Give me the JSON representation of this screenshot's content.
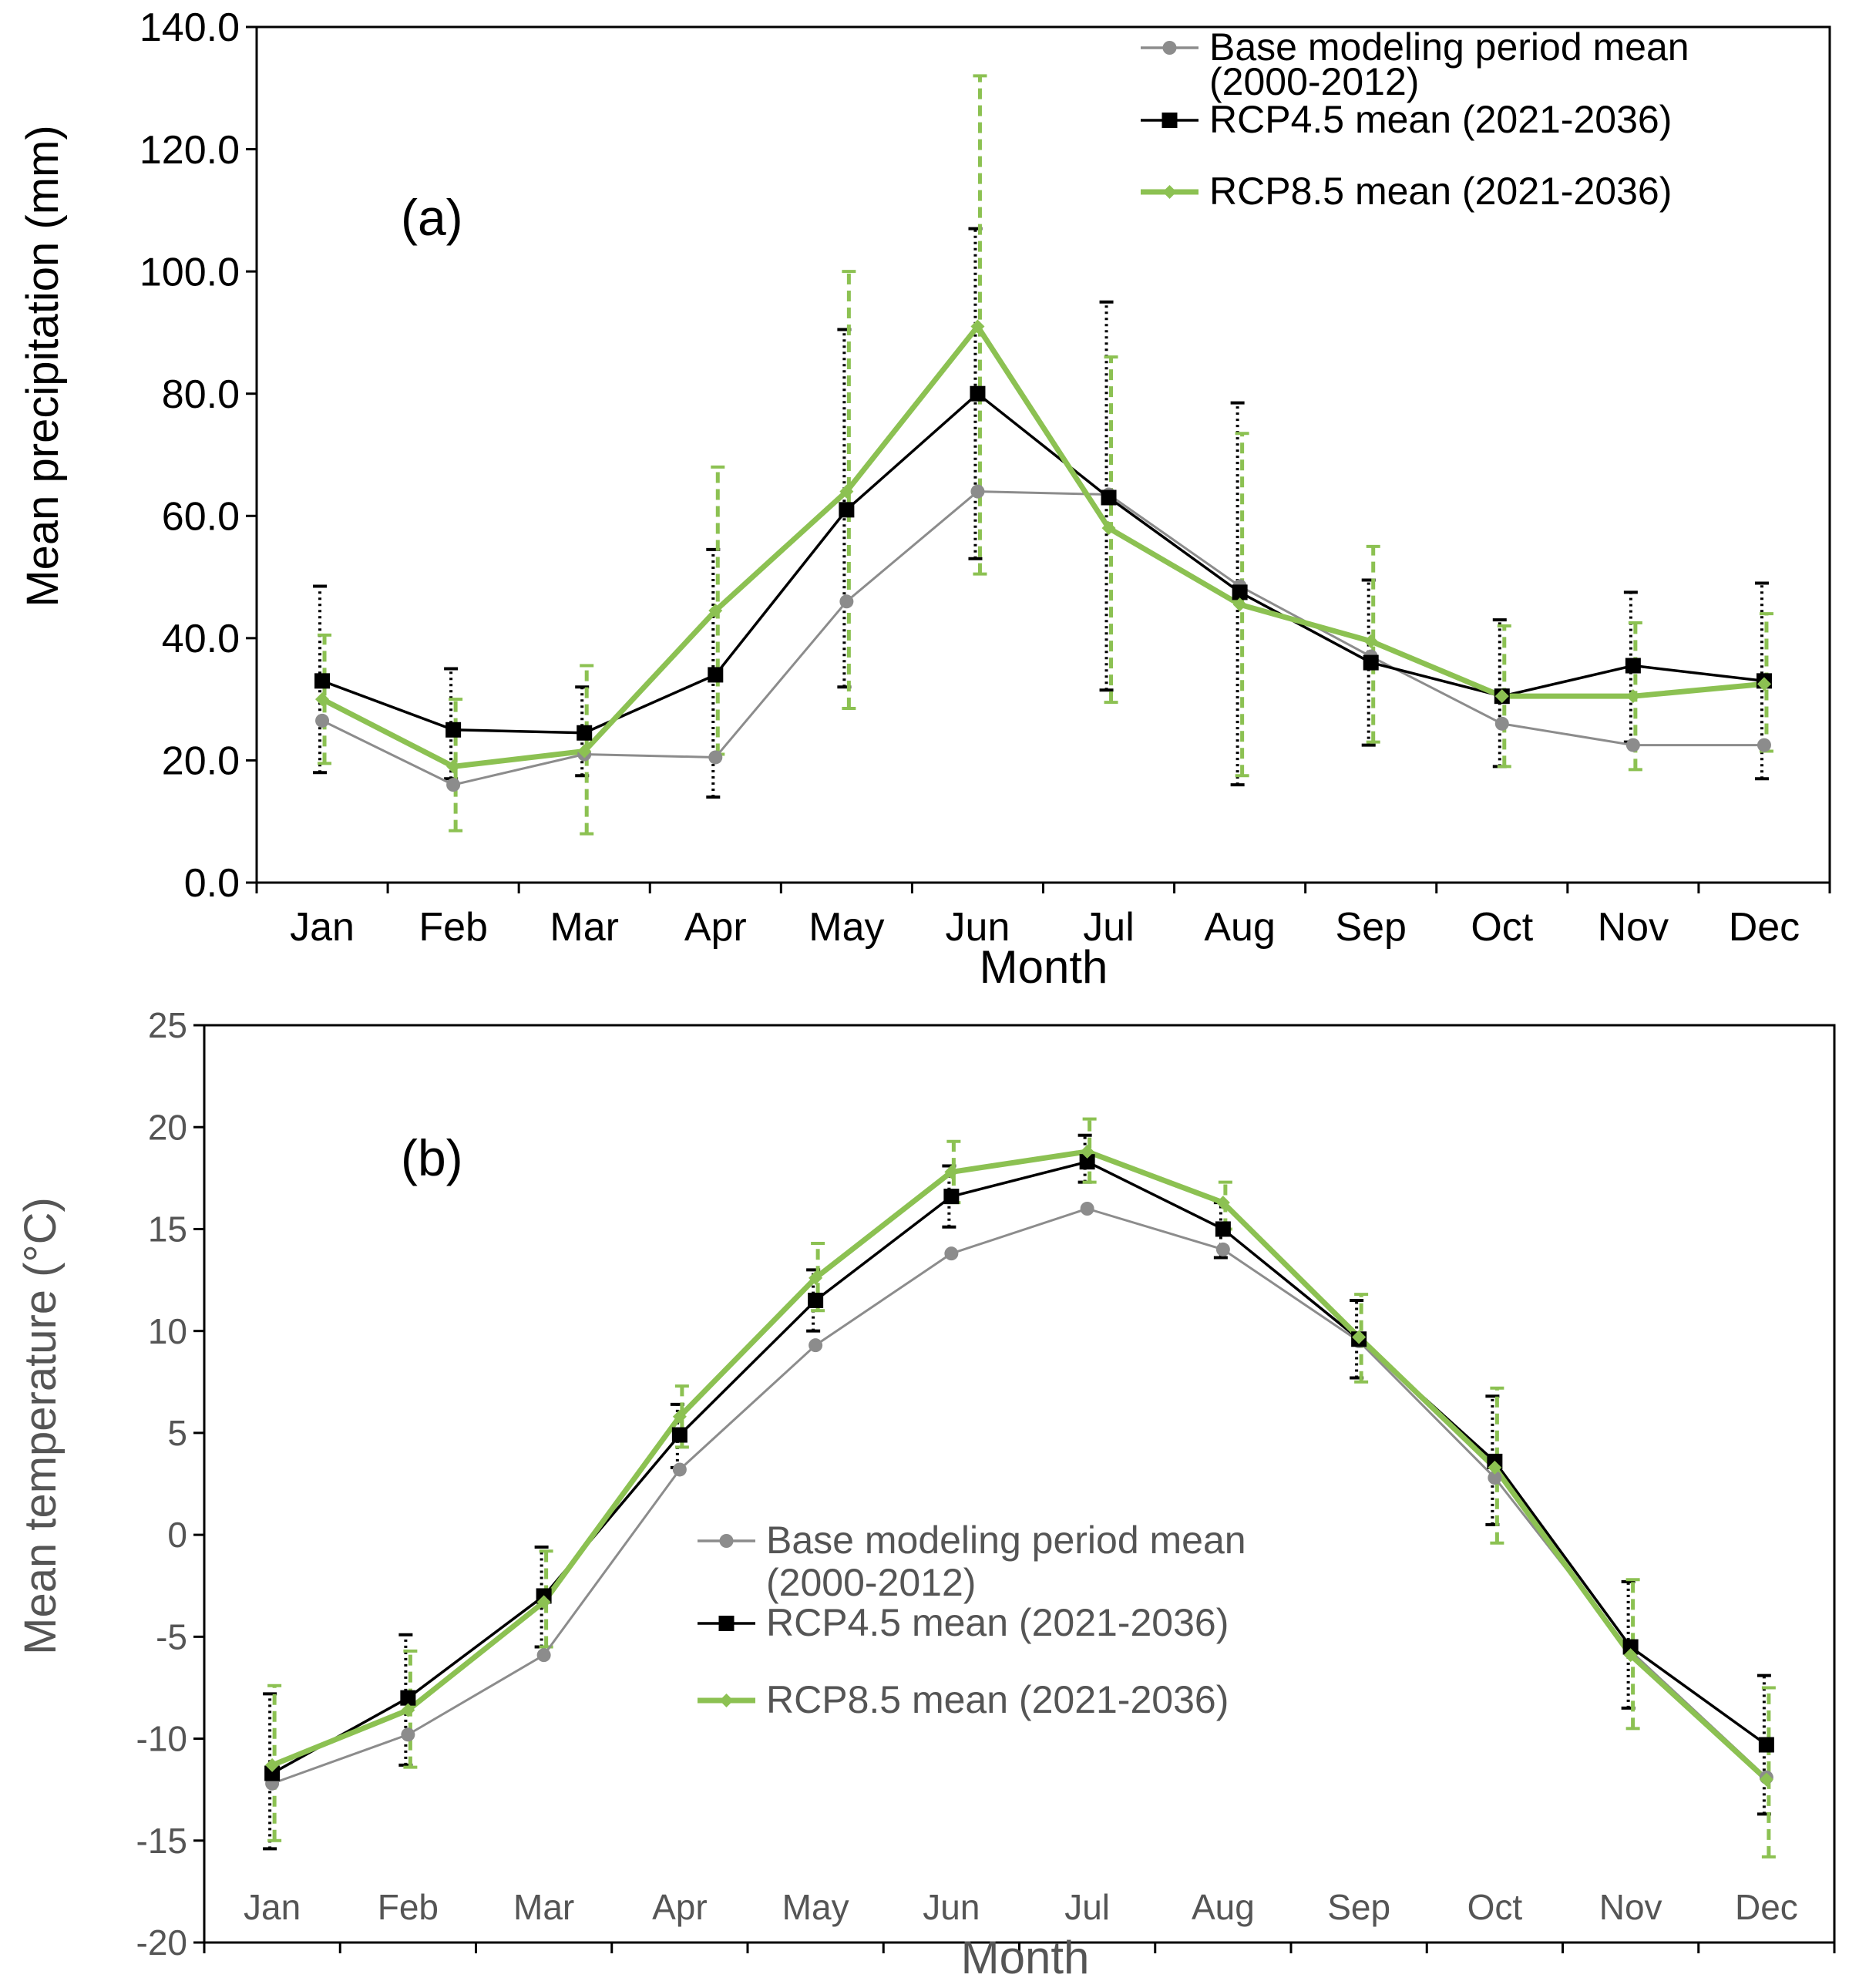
{
  "chart_data": [
    {
      "id": "a",
      "type": "line",
      "panel_label": "(a)",
      "xlabel": "Month",
      "ylabel": "Mean precipitation (mm)",
      "categories": [
        "Jan",
        "Feb",
        "Mar",
        "Apr",
        "May",
        "Jun",
        "Jul",
        "Aug",
        "Sep",
        "Oct",
        "Nov",
        "Dec"
      ],
      "ylim": [
        0,
        140
      ],
      "yticks": [
        "0.0",
        "20.0",
        "40.0",
        "60.0",
        "80.0",
        "100.0",
        "120.0",
        "140.0"
      ],
      "grid": false,
      "legend_position": "top-right",
      "series": [
        {
          "name": "Base modeling period mean (2000-2012)",
          "legend_lines": [
            "Base modeling period mean",
            "(2000-2012)"
          ],
          "color": "#8c8c8c",
          "marker": "circle",
          "values": [
            26.5,
            16.0,
            21.0,
            20.5,
            46.0,
            64.0,
            63.5,
            48.5,
            37.0,
            26.0,
            22.5,
            22.5
          ]
        },
        {
          "name": "RCP4.5 mean (2021-2036)",
          "legend_lines": [
            "RCP4.5 mean (2021-2036)"
          ],
          "color": "#000000",
          "marker": "square",
          "values": [
            33.0,
            25.0,
            24.5,
            34.0,
            61.0,
            80.0,
            63.0,
            47.5,
            36.0,
            30.5,
            35.5,
            33.0
          ],
          "error_low": [
            18.0,
            17.0,
            17.5,
            14.0,
            32.0,
            53.0,
            31.5,
            16.0,
            22.5,
            19.0,
            23.0,
            17.0
          ],
          "error_high": [
            48.5,
            35.0,
            32.0,
            54.5,
            90.5,
            107.0,
            95.0,
            78.5,
            49.5,
            43.0,
            47.5,
            49.0
          ]
        },
        {
          "name": "RCP8.5 mean (2021-2036)",
          "legend_lines": [
            "RCP8.5 mean (2021-2036)"
          ],
          "color": "#8cc152",
          "marker": "diamond",
          "values": [
            30.0,
            19.0,
            21.5,
            44.5,
            64.0,
            91.0,
            58.0,
            45.5,
            39.5,
            30.5,
            30.5,
            32.5
          ],
          "error_low": [
            19.5,
            8.5,
            8.0,
            21.0,
            28.5,
            50.5,
            29.5,
            17.5,
            23.0,
            19.0,
            18.5,
            21.5
          ],
          "error_high": [
            40.5,
            30.0,
            35.5,
            68.0,
            100.0,
            132.0,
            86.0,
            73.5,
            55.0,
            42.0,
            42.5,
            44.0
          ]
        }
      ]
    },
    {
      "id": "b",
      "type": "line",
      "panel_label": "(b)",
      "xlabel": "Month",
      "ylabel": "Mean temperature (°C)",
      "categories": [
        "Jan",
        "Feb",
        "Mar",
        "Apr",
        "May",
        "Jun",
        "Jul",
        "Aug",
        "Sep",
        "Oct",
        "Nov",
        "Dec"
      ],
      "ylim": [
        -20,
        25
      ],
      "yticks": [
        "-20",
        "-15",
        "-10",
        "-5",
        "0",
        "5",
        "10",
        "15",
        "20",
        "25"
      ],
      "grid": false,
      "legend_position": "center",
      "series": [
        {
          "name": "Base modeling period mean (2000-2012)",
          "legend_lines": [
            "Base modeling period mean",
            "(2000-2012)"
          ],
          "color": "#8c8c8c",
          "marker": "circle",
          "values": [
            -12.2,
            -9.8,
            -5.9,
            3.2,
            9.3,
            13.8,
            16.0,
            14.0,
            9.5,
            2.8,
            -5.7,
            -11.9
          ]
        },
        {
          "name": "RCP4.5 mean (2021-2036)",
          "legend_lines": [
            "RCP4.5 mean (2021-2036)"
          ],
          "color": "#000000",
          "marker": "square",
          "values": [
            -11.7,
            -8.0,
            -3.0,
            4.9,
            11.5,
            16.6,
            18.3,
            15.0,
            9.6,
            3.6,
            -5.5,
            -10.3
          ],
          "error_low": [
            -15.4,
            -11.3,
            -5.5,
            3.3,
            10.0,
            15.1,
            17.3,
            13.6,
            7.7,
            0.5,
            -8.5,
            -13.7
          ],
          "error_high": [
            -7.8,
            -4.9,
            -0.6,
            6.4,
            13.0,
            18.1,
            19.6,
            16.3,
            11.5,
            6.8,
            -2.3,
            -6.9
          ]
        },
        {
          "name": "RCP8.5 mean (2021-2036)",
          "legend_lines": [
            "RCP8.5 mean (2021-2036)"
          ],
          "color": "#8cc152",
          "marker": "diamond",
          "values": [
            -11.3,
            -8.6,
            -3.3,
            5.8,
            12.6,
            17.8,
            18.8,
            16.3,
            9.7,
            3.3,
            -5.9,
            -12.0
          ],
          "error_low": [
            -15.0,
            -11.4,
            -5.5,
            4.3,
            11.0,
            16.3,
            17.3,
            15.0,
            7.5,
            -0.4,
            -9.5,
            -15.8
          ],
          "error_high": [
            -7.4,
            -5.7,
            -0.8,
            7.3,
            14.3,
            19.3,
            20.4,
            17.3,
            11.8,
            7.2,
            -2.2,
            -7.5
          ]
        }
      ]
    }
  ]
}
